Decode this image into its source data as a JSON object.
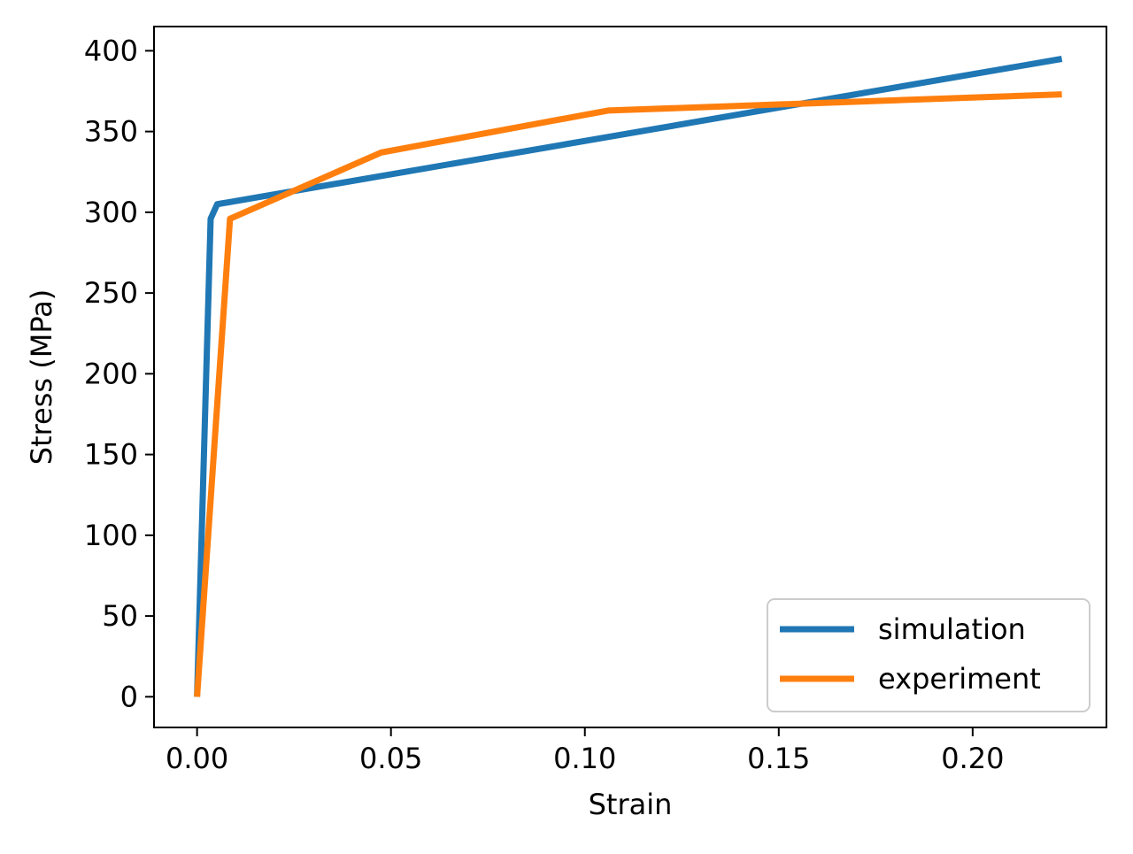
{
  "chart_data": {
    "type": "line",
    "title": "",
    "xlabel": "Strain",
    "ylabel": "Stress (MPa)",
    "xlim": [
      -0.0111,
      0.2345
    ],
    "ylim": [
      -19,
      415
    ],
    "xticks": [
      0.0,
      0.05,
      0.1,
      0.15,
      0.2
    ],
    "xtick_labels": [
      "0.00",
      "0.05",
      "0.10",
      "0.15",
      "0.20"
    ],
    "yticks": [
      0,
      50,
      100,
      150,
      200,
      250,
      300,
      350,
      400
    ],
    "ytick_labels": [
      "0",
      "50",
      "100",
      "150",
      "200",
      "250",
      "300",
      "350",
      "400"
    ],
    "grid": false,
    "legend_position": "lower-right",
    "series": [
      {
        "name": "simulation",
        "color": "#1f77b4",
        "x": [
          0.0,
          0.0035,
          0.0052,
          0.223
        ],
        "y": [
          0,
          296,
          305,
          395
        ]
      },
      {
        "name": "experiment",
        "color": "#ff7f0e",
        "x": [
          0.0,
          0.0085,
          0.0475,
          0.106,
          0.223
        ],
        "y": [
          0,
          296,
          337,
          363,
          373
        ]
      }
    ]
  }
}
